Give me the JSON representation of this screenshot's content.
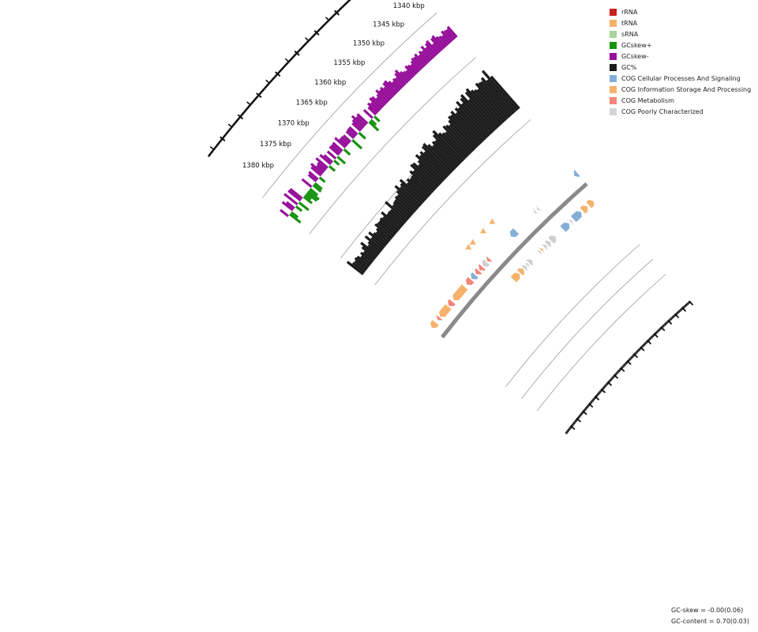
{
  "legend": [
    {
      "label": "rRNA",
      "color": "#cc1f1f"
    },
    {
      "label": "tRNA",
      "color": "#f5b16a"
    },
    {
      "label": "sRNA",
      "color": "#a7d59b"
    },
    {
      "label": "GCskew+",
      "color": "#16930f"
    },
    {
      "label": "GCskew-",
      "color": "#960f9a"
    },
    {
      "label": "GC%",
      "color": "#1c1c1c"
    },
    {
      "label": "COG Cellular Processes And Signaling",
      "color": "#83afd6"
    },
    {
      "label": "COG Information Storage And Processing",
      "color": "#f6b26b"
    },
    {
      "label": "COG Metabolism",
      "color": "#f28478"
    },
    {
      "label": "COG Poorly Characterized",
      "color": "#d5d5d5"
    }
  ],
  "ticks": [
    "1340 kbp",
    "1345 kbp",
    "1350 kbp",
    "1355 kbp",
    "1360 kbp",
    "1365 kbp",
    "1370 kbp",
    "1375 kbp",
    "1380 kbp"
  ],
  "stats": {
    "gc_skew": "GC-skew = -0.00(0.06)",
    "gc_content": "GC-content = 0.70(0.03)"
  },
  "colors": {
    "backbone": "#8a8a8a",
    "ring_line": "#9a9a9a",
    "gc": "#1c1c1c",
    "skew_pos": "#16930f",
    "skew_neg": "#960f9a",
    "cog_cps": "#83afd6",
    "cog_isp": "#f6b26b",
    "cog_met": "#f28478",
    "cog_poor": "#cfcfcf"
  },
  "features": [
    {
      "cat": "cog_cps",
      "strand": 1,
      "s": 0.0,
      "e": 0.02
    },
    {
      "cat": "cog_isp",
      "strand": -1,
      "s": 0.03,
      "e": 0.06
    },
    {
      "cat": "cog_isp",
      "strand": -1,
      "s": 0.07,
      "e": 0.1
    },
    {
      "cat": "cog_cps",
      "strand": -1,
      "s": 0.11,
      "e": 0.16
    },
    {
      "cat": "cog_poor",
      "strand": -1,
      "s": 0.17,
      "e": 0.18
    },
    {
      "cat": "cog_cps",
      "strand": -1,
      "s": 0.19,
      "e": 0.23
    },
    {
      "cat": "cog_poor",
      "strand": 1,
      "s": 0.245,
      "e": 0.255
    },
    {
      "cat": "cog_poor",
      "strand": 1,
      "s": 0.265,
      "e": 0.275
    },
    {
      "cat": "cog_poor",
      "strand": -1,
      "s": 0.28,
      "e": 0.31
    },
    {
      "cat": "cog_poor",
      "strand": -1,
      "s": 0.315,
      "e": 0.335
    },
    {
      "cat": "cog_poor",
      "strand": -1,
      "s": 0.34,
      "e": 0.355
    },
    {
      "cat": "cog_isp",
      "strand": -1,
      "s": 0.365,
      "e": 0.375
    },
    {
      "cat": "cog_poor",
      "strand": -1,
      "s": 0.38,
      "e": 0.39
    },
    {
      "cat": "cog_cps",
      "strand": 1,
      "s": 0.395,
      "e": 0.43
    },
    {
      "cat": "cog_poor",
      "strand": -1,
      "s": 0.44,
      "e": 0.46
    },
    {
      "cat": "cog_poor",
      "strand": -1,
      "s": 0.465,
      "e": 0.475
    },
    {
      "cat": "cog_poor",
      "strand": -1,
      "s": 0.48,
      "e": 0.495
    },
    {
      "cat": "cog_isp",
      "strand": -1,
      "s": 0.5,
      "e": 0.525
    },
    {
      "cat": "cog_isp",
      "strand": -1,
      "s": 0.53,
      "e": 0.57
    },
    {
      "cat": "cog_met",
      "strand": 1,
      "s": 0.575,
      "e": 0.59
    },
    {
      "cat": "cog_poor",
      "strand": 1,
      "s": 0.595,
      "e": 0.62
    },
    {
      "cat": "cog_met",
      "strand": 1,
      "s": 0.625,
      "e": 0.645
    },
    {
      "cat": "cog_met",
      "strand": 1,
      "s": 0.65,
      "e": 0.67
    },
    {
      "cat": "cog_cps",
      "strand": 1,
      "s": 0.675,
      "e": 0.7
    },
    {
      "cat": "cog_met",
      "strand": 1,
      "s": 0.705,
      "e": 0.735
    },
    {
      "cat": "cog_isp",
      "strand": 1,
      "s": 0.75,
      "e": 0.83
    },
    {
      "cat": "cog_met",
      "strand": 1,
      "s": 0.84,
      "e": 0.865
    },
    {
      "cat": "cog_isp",
      "strand": 1,
      "s": 0.87,
      "e": 0.93
    },
    {
      "cat": "cog_met",
      "strand": 1,
      "s": 0.935,
      "e": 0.95
    },
    {
      "cat": "cog_isp",
      "strand": 1,
      "s": 0.965,
      "e": 0.995
    }
  ]
}
